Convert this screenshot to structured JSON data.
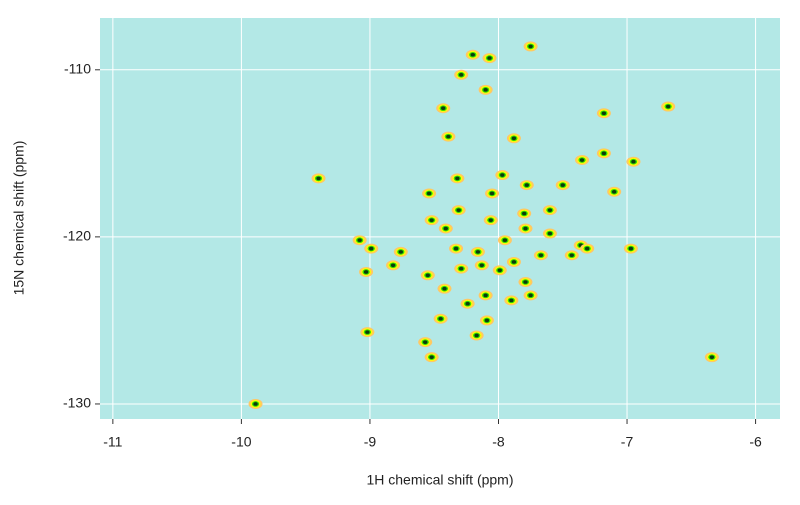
{
  "chart_data": {
    "type": "scatter",
    "xlabel": "1H chemical shift (ppm)",
    "ylabel": "15N chemical shift (ppm)",
    "x": [
      -8.07,
      -8.2,
      -7.75,
      -8.1,
      -8.43,
      -8.29,
      -8.39,
      -7.88,
      -7.35,
      -7.18,
      -6.95,
      -7.18,
      -6.68,
      -7.97,
      -8.32,
      -7.78,
      -7.5,
      -7.1,
      -8.54,
      -8.05,
      -9.4,
      -8.31,
      -7.8,
      -7.6,
      -8.52,
      -8.41,
      -8.06,
      -7.95,
      -7.79,
      -7.6,
      -7.36,
      -7.31,
      -6.97,
      -9.08,
      -8.99,
      -8.76,
      -8.33,
      -8.16,
      -7.88,
      -7.67,
      -7.43,
      -8.82,
      -9.03,
      -8.55,
      -8.29,
      -8.13,
      -7.99,
      -7.79,
      -8.42,
      -8.1,
      -7.9,
      -7.75,
      -8.24,
      -8.45,
      -8.09,
      -9.02,
      -8.17,
      -8.57,
      -8.52,
      -6.34,
      -9.89
    ],
    "values": [
      -109.3,
      -109.1,
      -108.6,
      -111.2,
      -112.3,
      -110.3,
      -114.0,
      -114.1,
      -115.4,
      -115.0,
      -115.5,
      -112.6,
      -112.2,
      -116.3,
      -116.5,
      -116.9,
      -116.9,
      -117.3,
      -117.4,
      -117.4,
      -116.5,
      -118.4,
      -118.6,
      -118.4,
      -119.0,
      -119.5,
      -119.0,
      -120.2,
      -119.5,
      -119.8,
      -120.5,
      -120.7,
      -120.7,
      -120.2,
      -120.7,
      -120.9,
      -120.7,
      -120.9,
      -121.5,
      -121.1,
      -121.1,
      -121.7,
      -122.1,
      -122.3,
      -121.9,
      -121.7,
      -122.0,
      -122.7,
      -123.1,
      -123.5,
      -123.8,
      -123.5,
      -124.0,
      -124.9,
      -125.0,
      -125.7,
      -125.9,
      -126.3,
      -127.2,
      -127.2,
      -130.0
    ],
    "contour_colors": [
      "#ffc864",
      "#ffff00",
      "#33dd00",
      "#0b3d0b"
    ],
    "panel_color": "#b3e8e6",
    "xlim": [
      -11.1,
      -5.81
    ],
    "ylim": [
      -130.9,
      -106.9
    ],
    "xticks": [
      -11,
      -10,
      -9,
      -8,
      -7,
      -6
    ],
    "yticks": [
      -110,
      -120,
      -130
    ],
    "grid": true
  }
}
